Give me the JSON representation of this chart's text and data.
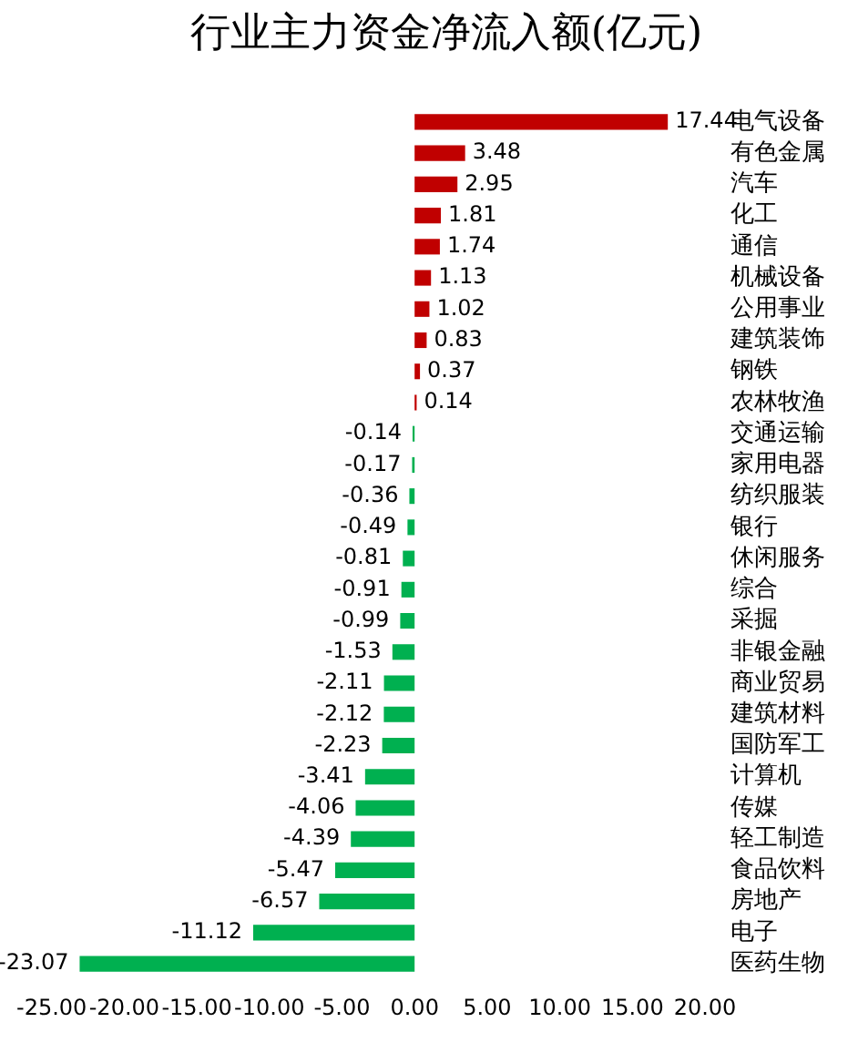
{
  "chart_data": {
    "type": "bar",
    "orientation": "horizontal",
    "title": "行业主力资金净流入额(亿元)",
    "categories": [
      "电气设备",
      "有色金属",
      "汽车",
      "化工",
      "通信",
      "机械设备",
      "公用事业",
      "建筑装饰",
      "钢铁",
      "农林牧渔",
      "交通运输",
      "家用电器",
      "纺织服装",
      "银行",
      "休闲服务",
      "综合",
      "采掘",
      "非银金融",
      "商业贸易",
      "建筑材料",
      "国防军工",
      "计算机",
      "传媒",
      "轻工制造",
      "食品饮料",
      "房地产",
      "电子",
      "医药生物"
    ],
    "values": [
      17.44,
      3.48,
      2.95,
      1.81,
      1.74,
      1.13,
      1.02,
      0.83,
      0.37,
      0.14,
      -0.14,
      -0.17,
      -0.36,
      -0.49,
      -0.81,
      -0.91,
      -0.99,
      -1.53,
      -2.11,
      -2.12,
      -2.23,
      -3.41,
      -4.06,
      -4.39,
      -5.47,
      -6.57,
      -11.12,
      -23.07
    ],
    "colors": [
      "#c00000",
      "#c00000",
      "#c00000",
      "#c00000",
      "#c00000",
      "#c00000",
      "#c00000",
      "#c00000",
      "#c00000",
      "#c00000",
      "#00b050",
      "#00b050",
      "#00b050",
      "#00b050",
      "#00b050",
      "#00b050",
      "#00b050",
      "#00b050",
      "#00b050",
      "#00b050",
      "#00b050",
      "#00b050",
      "#00b050",
      "#00b050",
      "#00b050",
      "#00b050",
      "#00b050",
      "#00b050"
    ],
    "xlim": [
      -25,
      20
    ],
    "xticks": [
      {
        "value": -25,
        "label": "-25.00"
      },
      {
        "value": -20,
        "label": "-20.00"
      },
      {
        "value": -15,
        "label": "-15.00"
      },
      {
        "value": -10,
        "label": "-10.00"
      },
      {
        "value": -5,
        "label": "-5.00"
      },
      {
        "value": 0,
        "label": "0.00"
      },
      {
        "value": 5,
        "label": "5.00"
      },
      {
        "value": 10,
        "label": "10.00"
      },
      {
        "value": 15,
        "label": "15.00"
      },
      {
        "value": 20,
        "label": "20.00"
      }
    ],
    "data_labels": true
  }
}
